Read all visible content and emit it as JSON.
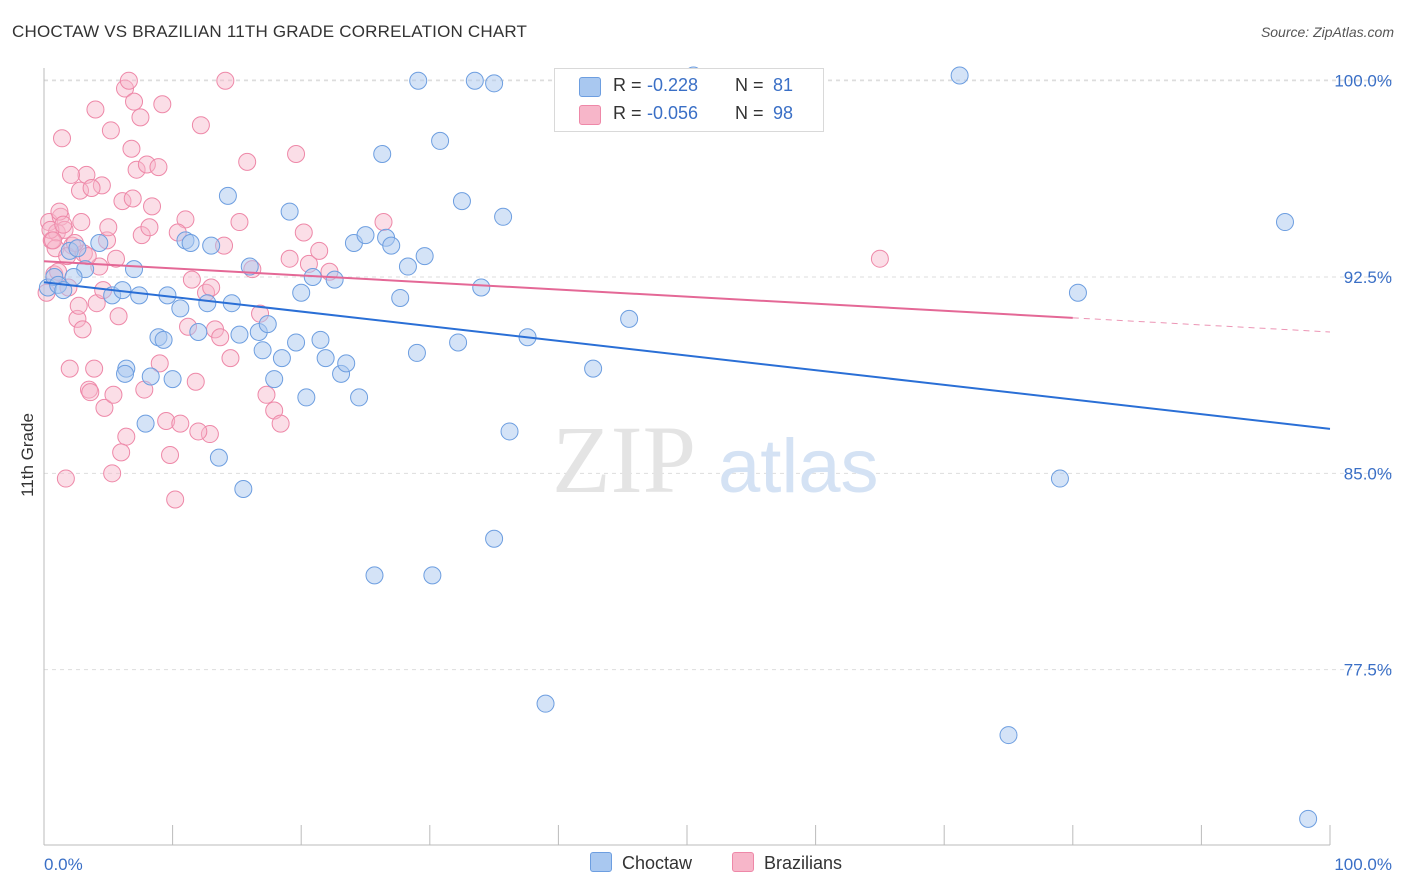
{
  "title": "CHOCTAW VS BRAZILIAN 11TH GRADE CORRELATION CHART",
  "source": "Source: ZipAtlas.com",
  "watermark": {
    "zip": "ZIP",
    "atlas": "atlas"
  },
  "legend": {
    "rows": [
      {
        "r_label": "R =",
        "r_value": "-0.228",
        "n_label": "N =",
        "n_value": "81",
        "color": "#a9c8f0"
      },
      {
        "r_label": "R =",
        "r_value": "-0.056",
        "n_label": "N =",
        "n_value": "98",
        "color": "#f7b6c9"
      }
    ]
  },
  "bottom_legend": {
    "series1": "Choctaw",
    "series2": "Brazilians"
  },
  "colors": {
    "blue_fill": "#a9c8f0",
    "blue_stroke": "#6d9ee0",
    "blue_line": "#2a6fd6",
    "pink_fill": "#f7b6c9",
    "pink_stroke": "#ee88a8",
    "pink_line": "#e46896",
    "tick_label": "#3a6fc6",
    "grid": "#dddddd"
  },
  "chart_data": {
    "type": "scatter",
    "title": "CHOCTAW VS BRAZILIAN 11TH GRADE CORRELATION CHART",
    "xlabel": "",
    "ylabel": "11th Grade",
    "xlim": [
      0,
      100
    ],
    "ylim": [
      70.8,
      100.6
    ],
    "x_tick_labels": [
      "0.0%",
      "100.0%"
    ],
    "y_ticks": [
      77.5,
      85.0,
      92.5,
      100.0
    ],
    "y_tick_labels": [
      "77.5%",
      "85.0%",
      "92.5%",
      "100.0%"
    ],
    "grid": true,
    "legend_position": "top-center",
    "series": [
      {
        "name": "Choctaw",
        "r": -0.228,
        "n": 81,
        "trend": {
          "x": [
            0,
            100
          ],
          "y": [
            92.3,
            86.7
          ],
          "dashed_from": null
        },
        "points": [
          [
            0.3,
            92.1
          ],
          [
            0.8,
            92.5
          ],
          [
            1.1,
            92.2
          ],
          [
            1.5,
            92.0
          ],
          [
            2.0,
            93.5
          ],
          [
            2.6,
            93.6
          ],
          [
            3.2,
            92.8
          ],
          [
            4.3,
            93.8
          ],
          [
            5.3,
            91.8
          ],
          [
            6.1,
            92.0
          ],
          [
            6.4,
            89.0
          ],
          [
            6.3,
            88.8
          ],
          [
            7.0,
            92.8
          ],
          [
            7.4,
            91.8
          ],
          [
            7.9,
            86.9
          ],
          [
            8.3,
            88.7
          ],
          [
            8.9,
            90.2
          ],
          [
            9.3,
            90.1
          ],
          [
            9.6,
            91.8
          ],
          [
            10.0,
            88.6
          ],
          [
            10.6,
            91.3
          ],
          [
            11.0,
            93.9
          ],
          [
            11.4,
            93.8
          ],
          [
            12.0,
            90.4
          ],
          [
            12.7,
            91.5
          ],
          [
            13.0,
            93.7
          ],
          [
            13.6,
            85.6
          ],
          [
            14.3,
            95.6
          ],
          [
            14.6,
            91.5
          ],
          [
            15.2,
            90.3
          ],
          [
            15.5,
            84.4
          ],
          [
            16.0,
            92.9
          ],
          [
            16.7,
            90.4
          ],
          [
            17.0,
            89.7
          ],
          [
            17.4,
            90.7
          ],
          [
            17.9,
            88.6
          ],
          [
            18.5,
            89.4
          ],
          [
            19.1,
            95.0
          ],
          [
            19.6,
            90.0
          ],
          [
            20.0,
            91.9
          ],
          [
            20.4,
            87.9
          ],
          [
            20.9,
            92.5
          ],
          [
            21.5,
            90.1
          ],
          [
            21.9,
            89.4
          ],
          [
            22.6,
            92.4
          ],
          [
            23.1,
            88.8
          ],
          [
            23.5,
            89.2
          ],
          [
            24.1,
            93.8
          ],
          [
            24.5,
            87.9
          ],
          [
            25.0,
            94.1
          ],
          [
            25.7,
            81.1
          ],
          [
            26.3,
            97.2
          ],
          [
            26.6,
            94.0
          ],
          [
            27.0,
            93.7
          ],
          [
            27.7,
            91.7
          ],
          [
            28.3,
            92.9
          ],
          [
            29.1,
            100.0
          ],
          [
            29.0,
            89.6
          ],
          [
            29.6,
            93.3
          ],
          [
            30.2,
            81.1
          ],
          [
            30.8,
            97.7
          ],
          [
            32.2,
            90.0
          ],
          [
            32.5,
            95.4
          ],
          [
            33.5,
            100.0
          ],
          [
            34.0,
            92.1
          ],
          [
            35.0,
            99.9
          ],
          [
            35.7,
            94.8
          ],
          [
            36.2,
            86.6
          ],
          [
            35.0,
            82.5
          ],
          [
            37.6,
            90.2
          ],
          [
            39.0,
            76.2
          ],
          [
            42.7,
            89.0
          ],
          [
            45.5,
            90.9
          ],
          [
            50.5,
            100.2
          ],
          [
            71.2,
            100.2
          ],
          [
            75.0,
            75.0
          ],
          [
            79.0,
            84.8
          ],
          [
            80.4,
            91.9
          ],
          [
            96.5,
            94.6
          ],
          [
            98.3,
            71.8
          ],
          [
            2.3,
            92.5
          ]
        ]
      },
      {
        "name": "Brazilians",
        "r": -0.056,
        "n": 98,
        "trend": {
          "x": [
            0,
            100
          ],
          "y": [
            93.1,
            90.4
          ],
          "dashed_from": 80.0
        },
        "points": [
          [
            0.2,
            91.9
          ],
          [
            0.4,
            94.6
          ],
          [
            0.6,
            93.9
          ],
          [
            0.8,
            92.6
          ],
          [
            1.0,
            94.2
          ],
          [
            1.3,
            94.8
          ],
          [
            1.6,
            94.3
          ],
          [
            1.9,
            92.1
          ],
          [
            2.2,
            93.7
          ],
          [
            2.6,
            90.9
          ],
          [
            3.0,
            90.5
          ],
          [
            3.3,
            96.4
          ],
          [
            3.5,
            88.2
          ],
          [
            3.9,
            89.0
          ],
          [
            4.1,
            91.5
          ],
          [
            4.5,
            96.0
          ],
          [
            4.9,
            93.9
          ],
          [
            5.3,
            85.0
          ],
          [
            5.8,
            91.0
          ],
          [
            6.1,
            95.4
          ],
          [
            6.4,
            86.4
          ],
          [
            6.8,
            97.4
          ],
          [
            7.2,
            96.6
          ],
          [
            7.6,
            94.1
          ],
          [
            8.0,
            96.8
          ],
          [
            8.4,
            95.2
          ],
          [
            8.9,
            96.7
          ],
          [
            9.2,
            99.1
          ],
          [
            9.5,
            87.0
          ],
          [
            9.8,
            85.7
          ],
          [
            10.2,
            84.0
          ],
          [
            10.6,
            86.9
          ],
          [
            11.0,
            94.7
          ],
          [
            11.5,
            92.4
          ],
          [
            11.8,
            88.5
          ],
          [
            12.2,
            98.3
          ],
          [
            12.6,
            91.9
          ],
          [
            12.9,
            86.5
          ],
          [
            13.3,
            90.5
          ],
          [
            13.7,
            90.2
          ],
          [
            14.1,
            100.0
          ],
          [
            14.5,
            89.4
          ],
          [
            15.2,
            94.6
          ],
          [
            15.8,
            96.9
          ],
          [
            16.2,
            92.8
          ],
          [
            16.8,
            91.1
          ],
          [
            17.3,
            88.0
          ],
          [
            17.9,
            87.4
          ],
          [
            18.4,
            86.9
          ],
          [
            19.1,
            93.2
          ],
          [
            19.6,
            97.2
          ],
          [
            20.2,
            94.2
          ],
          [
            20.6,
            93.0
          ],
          [
            21.4,
            93.5
          ],
          [
            22.2,
            92.7
          ],
          [
            1.4,
            97.8
          ],
          [
            2.1,
            96.4
          ],
          [
            2.8,
            95.8
          ],
          [
            3.1,
            93.4
          ],
          [
            3.7,
            95.9
          ],
          [
            4.3,
            92.9
          ],
          [
            5.0,
            94.4
          ],
          [
            5.6,
            93.2
          ],
          [
            6.3,
            99.7
          ],
          [
            6.6,
            100.0
          ],
          [
            7.0,
            99.2
          ],
          [
            7.5,
            98.6
          ],
          [
            8.2,
            94.4
          ],
          [
            1.2,
            95.0
          ],
          [
            0.9,
            93.6
          ],
          [
            1.8,
            93.3
          ],
          [
            2.4,
            93.8
          ],
          [
            2.0,
            89.0
          ],
          [
            3.6,
            88.1
          ],
          [
            4.7,
            87.5
          ],
          [
            5.4,
            88.0
          ],
          [
            6.0,
            85.8
          ],
          [
            1.7,
            84.8
          ],
          [
            0.5,
            94.3
          ],
          [
            1.5,
            94.5
          ],
          [
            4.0,
            98.9
          ],
          [
            5.2,
            98.1
          ],
          [
            6.9,
            95.5
          ],
          [
            7.8,
            88.2
          ],
          [
            9.0,
            89.2
          ],
          [
            10.4,
            94.2
          ],
          [
            11.2,
            90.6
          ],
          [
            12.0,
            86.6
          ],
          [
            13.0,
            92.1
          ],
          [
            14.0,
            93.7
          ],
          [
            26.4,
            94.6
          ],
          [
            65.0,
            93.2
          ],
          [
            2.7,
            91.4
          ],
          [
            3.4,
            93.3
          ],
          [
            4.6,
            92.0
          ],
          [
            0.7,
            93.9
          ],
          [
            1.1,
            92.7
          ],
          [
            2.9,
            94.6
          ]
        ]
      }
    ]
  }
}
